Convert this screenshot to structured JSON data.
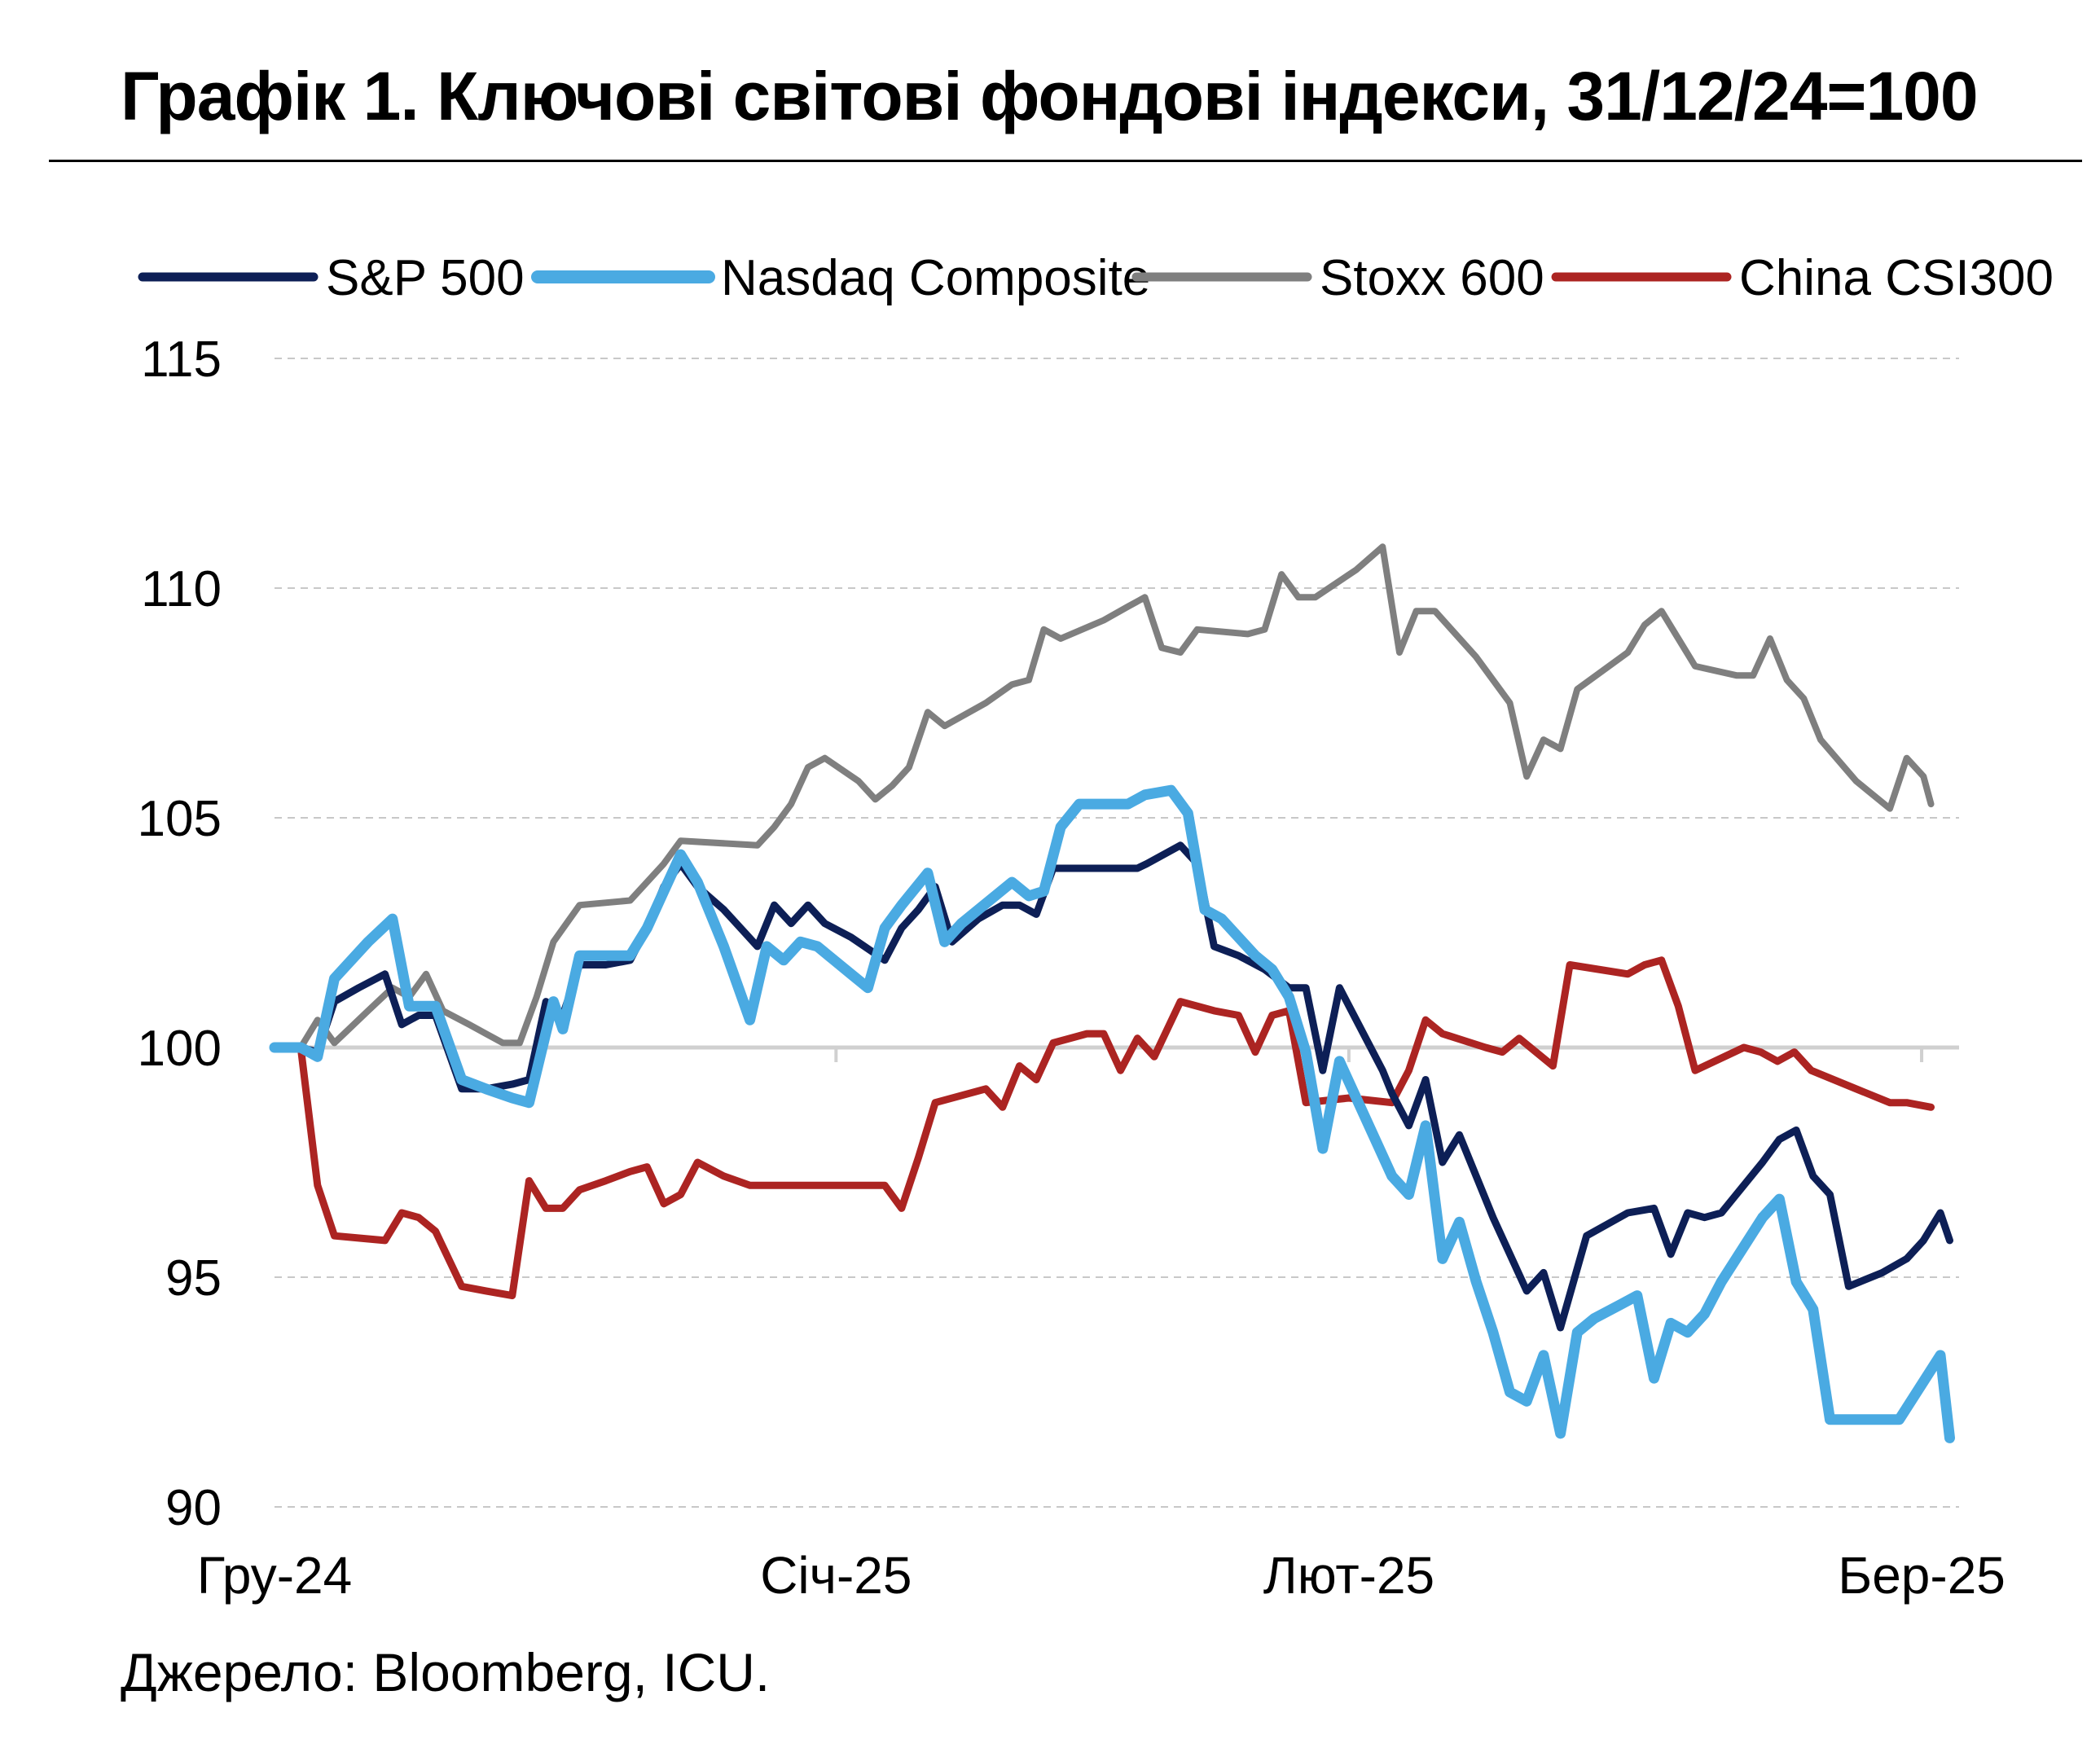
{
  "title": "Графік 1. Ключові світові фондові індекси, 31/12/24=100",
  "source": "Джерело: Bloomberg, ICU.",
  "chart_data": {
    "type": "line",
    "title": "Графік 1. Ключові світові фондові індекси, 31/12/24=100",
    "xlabel": "",
    "ylabel": "",
    "ylim": [
      90,
      115
    ],
    "yticks": [
      90,
      95,
      100,
      105,
      110,
      115
    ],
    "xlim": [
      0,
      90
    ],
    "x_tick_positions": [
      0,
      30,
      57.4,
      88
    ],
    "x_tick_labels": [
      "Гру-24",
      "Січ-25",
      "Лют-25",
      "Бер-25"
    ],
    "grid": "horizontal dashed",
    "legend_position": "top",
    "series": [
      {
        "name": "S&P 500",
        "color": "#0d1f56",
        "points": [
          [
            0,
            100.0
          ],
          [
            1.4,
            100.0
          ],
          [
            2.3,
            99.9
          ],
          [
            3.2,
            101.0
          ],
          [
            4.5,
            101.3
          ],
          [
            5.9,
            101.6
          ],
          [
            6.8,
            100.5
          ],
          [
            7.7,
            100.7
          ],
          [
            8.6,
            100.7
          ],
          [
            10.0,
            99.1
          ],
          [
            11.3,
            99.1
          ],
          [
            12.7,
            99.2
          ],
          [
            13.6,
            99.3
          ],
          [
            14.5,
            101.0
          ],
          [
            15.4,
            100.7
          ],
          [
            16.3,
            101.8
          ],
          [
            17.7,
            101.8
          ],
          [
            19.0,
            101.9
          ],
          [
            19.9,
            102.6
          ],
          [
            20.8,
            103.5
          ],
          [
            21.7,
            104.0
          ],
          [
            22.6,
            103.5
          ],
          [
            24.0,
            103.0
          ],
          [
            25.8,
            102.2
          ],
          [
            26.7,
            103.1
          ],
          [
            27.6,
            102.7
          ],
          [
            28.5,
            103.1
          ],
          [
            29.4,
            102.7
          ],
          [
            30.8,
            102.4
          ],
          [
            32.6,
            101.9
          ],
          [
            33.5,
            102.6
          ],
          [
            34.4,
            103.0
          ],
          [
            35.3,
            103.5
          ],
          [
            36.2,
            102.3
          ],
          [
            37.6,
            102.8
          ],
          [
            38.9,
            103.1
          ],
          [
            39.8,
            103.1
          ],
          [
            40.7,
            102.9
          ],
          [
            41.6,
            103.9
          ],
          [
            42.5,
            103.9
          ],
          [
            43.9,
            103.9
          ],
          [
            46.1,
            103.9
          ],
          [
            46.6,
            104.0
          ],
          [
            48.4,
            104.4
          ],
          [
            49.3,
            104.0
          ],
          [
            50.2,
            102.2
          ],
          [
            51.5,
            102.0
          ],
          [
            52.9,
            101.7
          ],
          [
            54.2,
            101.3
          ],
          [
            55.1,
            101.3
          ],
          [
            56.0,
            99.5
          ],
          [
            56.9,
            101.3
          ],
          [
            59.2,
            99.5
          ],
          [
            59.7,
            99.0
          ],
          [
            60.6,
            98.3
          ],
          [
            61.5,
            99.3
          ],
          [
            62.4,
            97.5
          ],
          [
            63.3,
            98.1
          ],
          [
            65.1,
            96.3
          ],
          [
            66.9,
            94.7
          ],
          [
            67.8,
            95.1
          ],
          [
            68.7,
            93.9
          ],
          [
            70.1,
            95.9
          ],
          [
            72.3,
            96.4
          ],
          [
            73.7,
            96.5
          ],
          [
            74.6,
            95.5
          ],
          [
            75.5,
            96.4
          ],
          [
            76.4,
            96.3
          ],
          [
            77.3,
            96.4
          ],
          [
            79.5,
            97.5
          ],
          [
            80.4,
            98.0
          ],
          [
            81.3,
            98.2
          ],
          [
            82.2,
            97.2
          ],
          [
            83.1,
            96.8
          ],
          [
            84.1,
            94.8
          ],
          [
            85.9,
            95.1
          ],
          [
            87.2,
            95.4
          ],
          [
            88.1,
            95.8
          ],
          [
            89.0,
            96.4
          ],
          [
            89.5,
            95.8
          ]
        ]
      },
      {
        "name": "Nasdaq Composite",
        "color": "#4aaae2",
        "points": [
          [
            0,
            100.0
          ],
          [
            1.4,
            100.0
          ],
          [
            2.3,
            99.8
          ],
          [
            3.2,
            101.5
          ],
          [
            5.0,
            102.3
          ],
          [
            6.3,
            102.8
          ],
          [
            7.2,
            100.9
          ],
          [
            8.6,
            100.9
          ],
          [
            10.0,
            99.3
          ],
          [
            11.3,
            99.1
          ],
          [
            12.7,
            98.9
          ],
          [
            13.6,
            98.8
          ],
          [
            14.9,
            101.0
          ],
          [
            15.4,
            100.4
          ],
          [
            16.3,
            102.0
          ],
          [
            17.7,
            102.0
          ],
          [
            19.0,
            102.0
          ],
          [
            19.9,
            102.6
          ],
          [
            20.8,
            103.4
          ],
          [
            21.7,
            104.2
          ],
          [
            22.6,
            103.6
          ],
          [
            24.0,
            102.2
          ],
          [
            25.4,
            100.6
          ],
          [
            26.3,
            102.2
          ],
          [
            27.2,
            101.9
          ],
          [
            28.1,
            102.3
          ],
          [
            29.0,
            102.2
          ],
          [
            30.8,
            101.6
          ],
          [
            31.7,
            101.3
          ],
          [
            32.6,
            102.6
          ],
          [
            33.5,
            103.1
          ],
          [
            34.9,
            103.8
          ],
          [
            35.8,
            102.3
          ],
          [
            36.7,
            102.7
          ],
          [
            39.4,
            103.6
          ],
          [
            40.3,
            103.3
          ],
          [
            41.1,
            103.4
          ],
          [
            42.0,
            104.8
          ],
          [
            43.0,
            105.3
          ],
          [
            44.3,
            105.3
          ],
          [
            45.6,
            105.3
          ],
          [
            46.5,
            105.5
          ],
          [
            47.9,
            105.6
          ],
          [
            48.8,
            105.1
          ],
          [
            49.7,
            103.0
          ],
          [
            50.6,
            102.8
          ],
          [
            52.4,
            102.0
          ],
          [
            53.3,
            101.7
          ],
          [
            54.2,
            101.1
          ],
          [
            55.1,
            99.9
          ],
          [
            56.0,
            97.8
          ],
          [
            56.9,
            99.7
          ],
          [
            59.7,
            97.2
          ],
          [
            60.6,
            96.8
          ],
          [
            61.5,
            98.3
          ],
          [
            62.4,
            95.4
          ],
          [
            63.3,
            96.2
          ],
          [
            64.2,
            94.9
          ],
          [
            65.1,
            93.8
          ],
          [
            66.0,
            92.5
          ],
          [
            66.9,
            92.3
          ],
          [
            67.8,
            93.3
          ],
          [
            68.7,
            91.6
          ],
          [
            69.6,
            93.8
          ],
          [
            70.5,
            94.1
          ],
          [
            71.9,
            94.4
          ],
          [
            72.8,
            94.6
          ],
          [
            73.7,
            92.8
          ],
          [
            74.6,
            94.0
          ],
          [
            75.5,
            93.8
          ],
          [
            76.4,
            94.2
          ],
          [
            77.3,
            94.9
          ],
          [
            79.5,
            96.3
          ],
          [
            80.4,
            96.7
          ],
          [
            81.3,
            94.9
          ],
          [
            82.2,
            94.3
          ],
          [
            83.1,
            91.9
          ],
          [
            86.8,
            91.9
          ],
          [
            89.0,
            93.3
          ],
          [
            89.5,
            91.5
          ]
        ]
      },
      {
        "name": "Stoxx 600",
        "color": "#7f7f7f",
        "points": [
          [
            0,
            100.0
          ],
          [
            1.4,
            100.0
          ],
          [
            2.3,
            100.6
          ],
          [
            3.2,
            100.1
          ],
          [
            5.0,
            100.8
          ],
          [
            6.3,
            101.3
          ],
          [
            7.2,
            101.1
          ],
          [
            8.1,
            101.6
          ],
          [
            9.0,
            100.8
          ],
          [
            10.4,
            100.5
          ],
          [
            11.3,
            100.3
          ],
          [
            12.2,
            100.1
          ],
          [
            13.1,
            100.1
          ],
          [
            14.0,
            101.1
          ],
          [
            14.9,
            102.3
          ],
          [
            16.3,
            103.1
          ],
          [
            19.0,
            103.2
          ],
          [
            20.8,
            104.0
          ],
          [
            21.7,
            104.5
          ],
          [
            25.8,
            104.4
          ],
          [
            26.7,
            104.8
          ],
          [
            27.6,
            105.3
          ],
          [
            28.5,
            106.1
          ],
          [
            29.4,
            106.3
          ],
          [
            31.2,
            105.8
          ],
          [
            32.1,
            105.4
          ],
          [
            33.0,
            105.7
          ],
          [
            33.9,
            106.1
          ],
          [
            34.9,
            107.3
          ],
          [
            35.8,
            107.0
          ],
          [
            38.0,
            107.5
          ],
          [
            39.4,
            107.9
          ],
          [
            40.3,
            108.0
          ],
          [
            41.1,
            109.1
          ],
          [
            42.0,
            108.9
          ],
          [
            44.3,
            109.3
          ],
          [
            45.6,
            109.6
          ],
          [
            46.5,
            109.8
          ],
          [
            47.4,
            108.7
          ],
          [
            48.4,
            108.6
          ],
          [
            49.3,
            109.1
          ],
          [
            52.0,
            109.0
          ],
          [
            52.9,
            109.1
          ],
          [
            53.8,
            110.3
          ],
          [
            54.7,
            109.8
          ],
          [
            55.6,
            109.8
          ],
          [
            57.8,
            110.4
          ],
          [
            59.2,
            110.9
          ],
          [
            60.1,
            108.6
          ],
          [
            61.0,
            109.5
          ],
          [
            62.0,
            109.5
          ],
          [
            64.2,
            108.5
          ],
          [
            66.0,
            107.5
          ],
          [
            66.9,
            105.9
          ],
          [
            67.8,
            106.7
          ],
          [
            68.7,
            106.5
          ],
          [
            69.6,
            107.8
          ],
          [
            72.3,
            108.6
          ],
          [
            73.2,
            109.2
          ],
          [
            74.1,
            109.5
          ],
          [
            75.0,
            108.9
          ],
          [
            75.9,
            108.3
          ],
          [
            78.1,
            108.1
          ],
          [
            79.0,
            108.1
          ],
          [
            79.9,
            108.9
          ],
          [
            80.8,
            108.0
          ],
          [
            81.7,
            107.6
          ],
          [
            82.6,
            106.7
          ],
          [
            84.5,
            105.8
          ],
          [
            86.3,
            105.2
          ],
          [
            87.2,
            106.3
          ],
          [
            88.1,
            105.9
          ],
          [
            88.5,
            105.3
          ]
        ]
      },
      {
        "name": "China CSI300",
        "color": "#ac2422",
        "points": [
          [
            0,
            100.0
          ],
          [
            1.4,
            100.0
          ],
          [
            2.3,
            97.0
          ],
          [
            3.2,
            95.9
          ],
          [
            5.9,
            95.8
          ],
          [
            6.8,
            96.4
          ],
          [
            7.7,
            96.3
          ],
          [
            8.6,
            96.0
          ],
          [
            10.0,
            94.8
          ],
          [
            11.3,
            94.7
          ],
          [
            12.7,
            94.6
          ],
          [
            13.6,
            97.1
          ],
          [
            14.5,
            96.5
          ],
          [
            15.4,
            96.5
          ],
          [
            16.3,
            96.9
          ],
          [
            17.7,
            97.1
          ],
          [
            19.0,
            97.3
          ],
          [
            19.9,
            97.4
          ],
          [
            20.8,
            96.6
          ],
          [
            21.7,
            96.8
          ],
          [
            22.6,
            97.5
          ],
          [
            24.0,
            97.2
          ],
          [
            25.4,
            97.0
          ],
          [
            26.3,
            97.0
          ],
          [
            31.7,
            97.0
          ],
          [
            32.6,
            97.0
          ],
          [
            33.5,
            96.5
          ],
          [
            34.4,
            97.6
          ],
          [
            35.3,
            98.8
          ],
          [
            38.0,
            99.1
          ],
          [
            38.9,
            98.7
          ],
          [
            39.8,
            99.6
          ],
          [
            40.7,
            99.3
          ],
          [
            41.6,
            100.1
          ],
          [
            43.4,
            100.3
          ],
          [
            44.3,
            100.3
          ],
          [
            45.2,
            99.5
          ],
          [
            46.1,
            100.2
          ],
          [
            47.0,
            99.8
          ],
          [
            48.4,
            101.0
          ],
          [
            50.2,
            100.8
          ],
          [
            51.5,
            100.7
          ],
          [
            52.4,
            99.9
          ],
          [
            53.3,
            100.7
          ],
          [
            54.2,
            100.8
          ],
          [
            55.1,
            98.8
          ],
          [
            57.4,
            98.9
          ],
          [
            59.7,
            98.8
          ],
          [
            60.6,
            99.5
          ],
          [
            61.5,
            100.6
          ],
          [
            62.4,
            100.3
          ],
          [
            64.7,
            100.0
          ],
          [
            65.6,
            99.9
          ],
          [
            66.5,
            100.2
          ],
          [
            68.3,
            99.6
          ],
          [
            69.2,
            101.8
          ],
          [
            72.3,
            101.6
          ],
          [
            73.2,
            101.8
          ],
          [
            74.1,
            101.9
          ],
          [
            75.0,
            100.9
          ],
          [
            75.9,
            99.5
          ],
          [
            78.5,
            100.0
          ],
          [
            79.4,
            99.9
          ],
          [
            80.3,
            99.7
          ],
          [
            81.2,
            99.9
          ],
          [
            82.1,
            99.5
          ],
          [
            84.5,
            99.1
          ],
          [
            86.3,
            98.8
          ],
          [
            87.2,
            98.8
          ],
          [
            88.5,
            98.7
          ]
        ]
      }
    ]
  }
}
